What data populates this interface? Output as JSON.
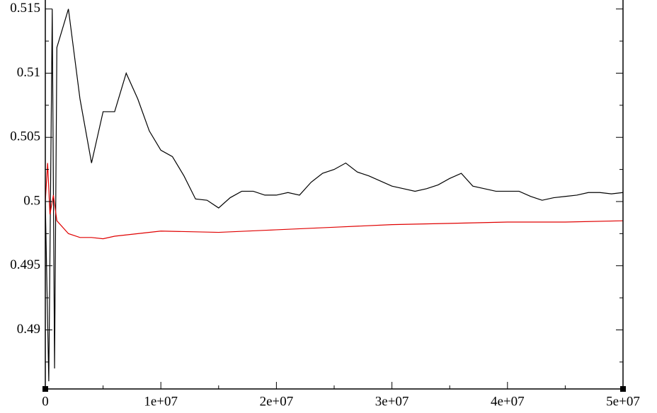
{
  "chart_data": {
    "type": "line",
    "xlim": [
      0,
      50000000
    ],
    "xticks": [
      0,
      {
        "value": 10000000,
        "label": "1e+07"
      },
      {
        "value": 20000000,
        "label": "2e+07"
      },
      {
        "value": 30000000,
        "label": "3e+07"
      },
      {
        "value": 40000000,
        "label": "4e+07"
      },
      {
        "value": 50000000,
        "label": "5e+07"
      }
    ],
    "ylim": [
      0.4854,
      0.5157
    ],
    "yticks": [
      0.49,
      0.495,
      0.5,
      0.505,
      0.51,
      0.515
    ],
    "series": [
      {
        "color": "#000000",
        "x": [
          0,
          300000,
          600000,
          800000,
          1000000,
          2000000,
          3000000,
          4000000,
          5000000,
          6000000,
          7000000,
          8000000,
          9000000,
          10000000,
          11000000,
          12000000,
          13000000,
          14000000,
          15000000,
          16000000,
          17000000,
          18000000,
          19000000,
          20000000,
          21000000,
          22000000,
          23000000,
          24000000,
          25000000,
          26000000,
          27000000,
          28000000,
          29000000,
          30000000,
          31000000,
          32000000,
          33000000,
          34000000,
          35000000,
          36000000,
          37000000,
          38000000,
          39000000,
          40000000,
          41000000,
          42000000,
          43000000,
          44000000,
          45000000,
          46000000,
          47000000,
          48000000,
          49000000,
          50000000
        ],
        "values": [
          0.5,
          0.486,
          0.515,
          0.487,
          0.512,
          0.515,
          0.508,
          0.503,
          0.507,
          0.507,
          0.51,
          0.508,
          0.5055,
          0.504,
          0.5035,
          0.502,
          0.5002,
          0.5001,
          0.4995,
          0.5003,
          0.5008,
          0.5008,
          0.5005,
          0.5005,
          0.5007,
          0.5005,
          0.5015,
          0.5022,
          0.5025,
          0.503,
          0.5023,
          0.502,
          0.5016,
          0.5012,
          0.501,
          0.5008,
          0.501,
          0.5013,
          0.5018,
          0.5022,
          0.5012,
          0.501,
          0.5008,
          0.5008,
          0.5008,
          0.5004,
          0.5001,
          0.5003,
          0.5004,
          0.5005,
          0.5007,
          0.5007,
          0.5006,
          0.5007
        ]
      },
      {
        "color": "#e00000",
        "x": [
          0,
          200000,
          400000,
          700000,
          1000000,
          2000000,
          3000000,
          4000000,
          5000000,
          6000000,
          8000000,
          10000000,
          15000000,
          20000000,
          25000000,
          30000000,
          35000000,
          40000000,
          45000000,
          50000000
        ],
        "values": [
          0.5,
          0.503,
          0.499,
          0.5005,
          0.4985,
          0.4975,
          0.4972,
          0.4972,
          0.4971,
          0.4973,
          0.4975,
          0.4977,
          0.4976,
          0.4978,
          0.498,
          0.4982,
          0.4983,
          0.4984,
          0.4984,
          0.4985
        ]
      }
    ]
  }
}
